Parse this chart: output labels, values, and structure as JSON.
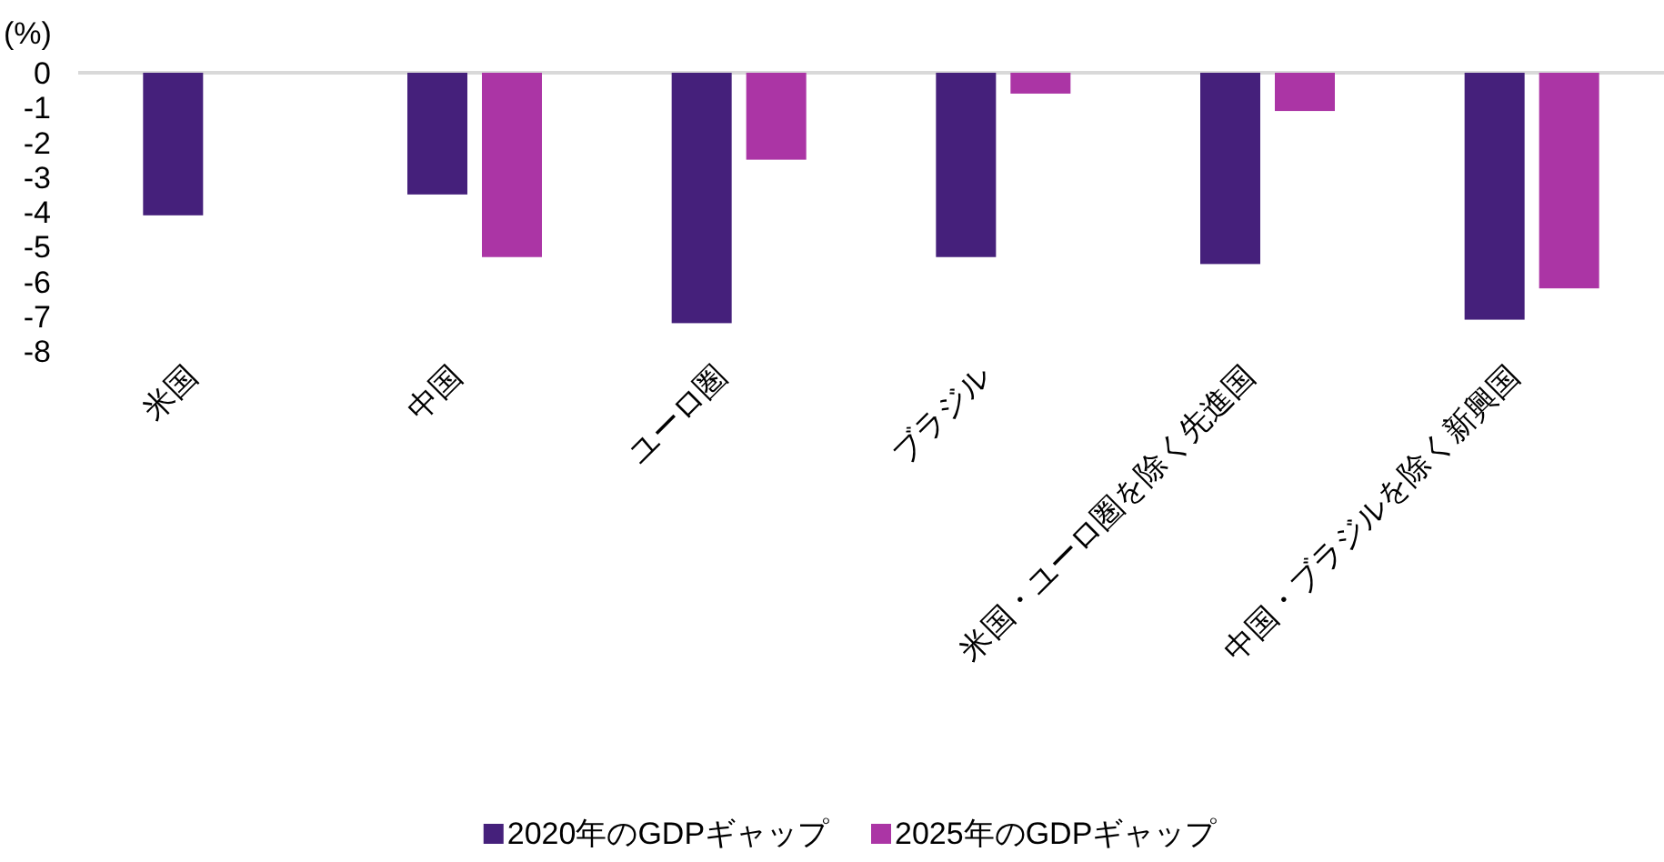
{
  "chart_data": {
    "type": "bar",
    "ylabel": "(%)",
    "categories": [
      "米国",
      "中国",
      "ユーロ圏",
      "ブラジル",
      "米国・ユーロ圏を除く先進国",
      "中国・ブラジルを除く新興国"
    ],
    "series": [
      {
        "name": "2020年のGDPギャップ",
        "color": "#45207b",
        "values": [
          -4.1,
          -3.5,
          -7.2,
          -5.3,
          -5.5,
          -7.1
        ]
      },
      {
        "name": "2025年のGDPギャップ",
        "color": "#ab35a5",
        "values": [
          null,
          -5.3,
          -2.5,
          -0.6,
          -1.1,
          -6.2
        ]
      }
    ],
    "ylim": [
      -8,
      0
    ],
    "yticks": [
      0,
      -1,
      -2,
      -3,
      -4,
      -5,
      -6,
      -7,
      -8
    ],
    "legend": "bottom",
    "grid": false
  }
}
